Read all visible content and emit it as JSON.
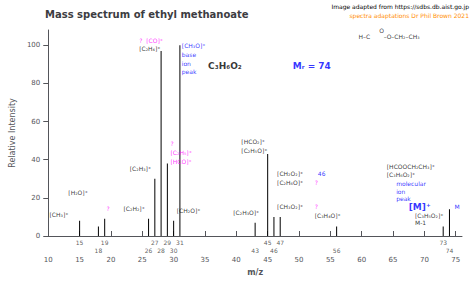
{
  "chart_data": {
    "type": "bar",
    "title": "Mass spectrum of ethyl methanoate",
    "x": [
      15,
      18,
      19,
      26,
      27,
      28,
      29,
      30,
      31,
      43,
      45,
      46,
      47,
      56,
      73,
      74
    ],
    "values": [
      8,
      5,
      9,
      9,
      30,
      97,
      38,
      8,
      100,
      7,
      43,
      10,
      10,
      5,
      5,
      14
    ],
    "color": "black",
    "xlim": [
      10,
      76
    ],
    "xticks": [
      10,
      15,
      20,
      25,
      30,
      35,
      40,
      45,
      50,
      55,
      60,
      65,
      70,
      75
    ],
    "ylim": [
      0,
      108
    ],
    "yticks": [
      0,
      20,
      40,
      60,
      80,
      100
    ],
    "xlabel": "m/z",
    "ylabel": "Relative Intensity",
    "grid": false,
    "annotations": [
      {
        "text": "[CH₃]⁺",
        "x": 10.2,
        "y": 9.5,
        "color": "black"
      },
      {
        "text": "[H₂O]⁺",
        "x": 13.2,
        "y": 21,
        "color": "black"
      },
      {
        "text": "?",
        "x": 19.3,
        "y": 13,
        "color": "magenta"
      },
      {
        "text": "[C₂H₂]⁺",
        "x": 22.0,
        "y": 13,
        "color": "black"
      },
      {
        "text": "[C₂H₃]⁺",
        "x": 23.0,
        "y": 34,
        "color": "black"
      },
      {
        "text": "?  [CO]⁺",
        "x": 24.5,
        "y": 101,
        "color": "magenta"
      },
      {
        "text": "[C₂H₄]⁺",
        "x": 24.5,
        "y": 96.5,
        "color": "black"
      },
      {
        "text": "?",
        "x": 29.5,
        "y": 47,
        "color": "magenta"
      },
      {
        "text": "[C₂H₅]⁺",
        "x": 29.5,
        "y": 42,
        "color": "magenta"
      },
      {
        "text": "[HCO]⁺",
        "x": 29.5,
        "y": 37.5,
        "color": "magenta"
      },
      {
        "text": "[CH₂O]⁺",
        "x": 30.5,
        "y": 12,
        "color": "black"
      },
      {
        "text": "[CH₃O]⁺",
        "x": 31.3,
        "y": 98.5,
        "color": "blue"
      },
      {
        "text": "base",
        "x": 31.3,
        "y": 93.5,
        "color": "blue"
      },
      {
        "text": "ion",
        "x": 31.3,
        "y": 89.0,
        "color": "blue"
      },
      {
        "text": "peak",
        "x": 31.3,
        "y": 84.5,
        "color": "blue"
      },
      {
        "text": "[C₂H₃O]⁺",
        "x": 39.5,
        "y": 11,
        "color": "black"
      },
      {
        "text": "[HCO₂]⁺",
        "x": 40.8,
        "y": 48,
        "color": "black"
      },
      {
        "text": "[C₂H₅O]⁺",
        "x": 40.8,
        "y": 43,
        "color": "black"
      },
      {
        "text": "[CH₂O₂]⁺",
        "x": 46.5,
        "y": 31,
        "color": "black"
      },
      {
        "text": "[C₂H₆O]⁺",
        "x": 46.5,
        "y": 26.5,
        "color": "black"
      },
      {
        "text": "?",
        "x": 52.5,
        "y": 26.5,
        "color": "magenta"
      },
      {
        "text": "46",
        "x": 53.0,
        "y": 31,
        "color": "blue"
      },
      {
        "text": "[CH₃O₂]⁺",
        "x": 46.5,
        "y": 14,
        "color": "black"
      },
      {
        "text": "?",
        "x": 52.5,
        "y": 14,
        "color": "magenta"
      },
      {
        "text": "[C₃H₄O]⁺",
        "x": 52.5,
        "y": 9,
        "color": "black"
      },
      {
        "text": "[C₃H₅O₂]⁺",
        "x": 68.5,
        "y": 9,
        "color": "black"
      },
      {
        "text": "M-1",
        "x": 68.5,
        "y": 5.5,
        "color": "black"
      },
      {
        "text": "[HCOOCH₂CH₃]⁺",
        "x": 64.0,
        "y": 35,
        "color": "black"
      },
      {
        "text": "[C₃H₆O₂]⁺",
        "x": 64.0,
        "y": 30.5,
        "color": "black"
      },
      {
        "text": "molecular",
        "x": 65.5,
        "y": 26,
        "color": "blue"
      },
      {
        "text": "ion",
        "x": 65.5,
        "y": 22,
        "color": "blue"
      },
      {
        "text": "peak",
        "x": 65.5,
        "y": 18,
        "color": "blue"
      },
      {
        "text": "[M]⁺",
        "x": 67.5,
        "y": 13,
        "color": "blue",
        "weight": "bold"
      },
      {
        "text": "M",
        "x": 74.8,
        "y": 14,
        "color": "blue"
      },
      {
        "text": "C₃H₆O₂",
        "x": 35.5,
        "y": 87,
        "color": "black",
        "weight": "bold"
      },
      {
        "text": "Mᵣ = 74",
        "x": 49.0,
        "y": 87,
        "color": "blue",
        "weight": "bold"
      },
      {
        "text": "H–C",
        "x": 59.5,
        "y": 103,
        "color": "black"
      },
      {
        "text": "O",
        "x": 62.8,
        "y": 106,
        "color": "black"
      },
      {
        "text": "–O–CH₂–CH₃",
        "x": 63.5,
        "y": 103,
        "color": "black"
      },
      {
        "text": "Image adapted from https://sdbs.db.aist.go.jp",
        "color": "black"
      },
      {
        "text": "spectra adaptations Dr Phil Brown 2021",
        "color": "darkorange"
      }
    ]
  }
}
